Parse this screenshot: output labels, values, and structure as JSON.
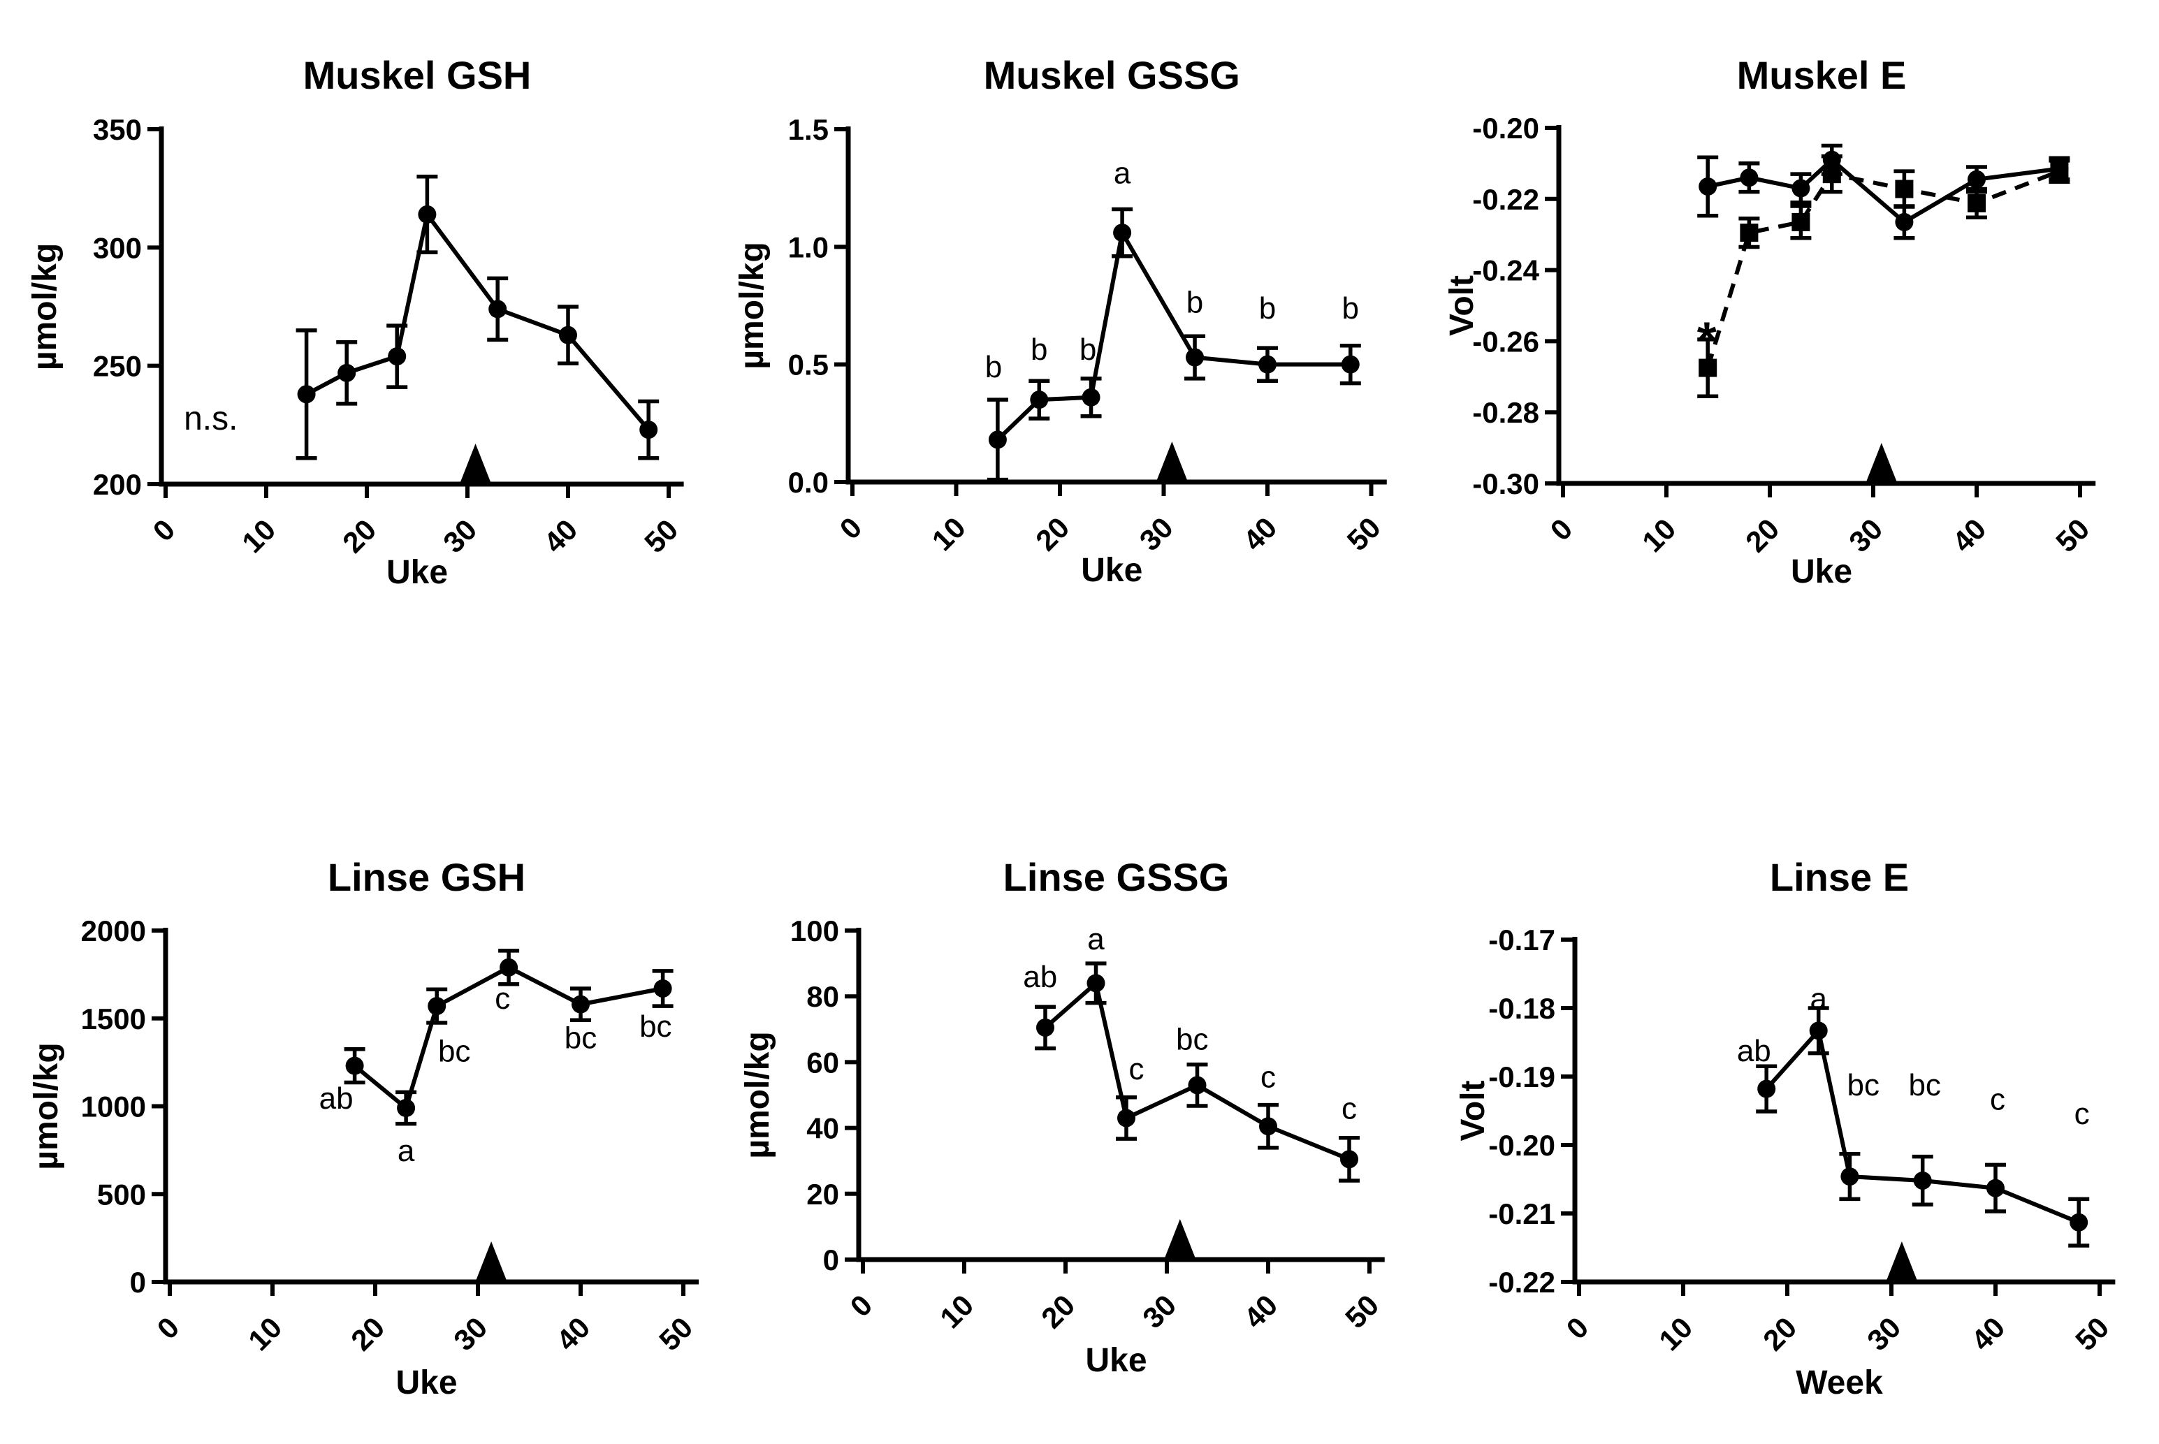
{
  "figure": {
    "background": "#ffffff",
    "ink": "#000000",
    "event_marker_glyph": "filled-up-triangle-on-x-axis"
  },
  "chart_data": [
    {
      "id": "muskel-gsh",
      "type": "line",
      "title": "Muskel GSH",
      "xlabel": "Uke",
      "ylabel": "µmol/kg",
      "xticks": [
        0,
        10,
        20,
        30,
        40,
        50
      ],
      "xlim": [
        0,
        52
      ],
      "ylim": [
        200,
        350
      ],
      "yticks": [
        {
          "v": 200,
          "label": "200"
        },
        {
          "v": 250,
          "label": "250"
        },
        {
          "v": 300,
          "label": "300"
        },
        {
          "v": 350,
          "label": "350"
        }
      ],
      "event_marker_x": 30.8,
      "series": [
        {
          "name": "muskel-gsh",
          "marker": "circle",
          "line": "solid",
          "x": [
            14,
            18,
            23,
            26,
            33,
            40,
            48
          ],
          "y": [
            238,
            247,
            254,
            314,
            274,
            263,
            223
          ],
          "err": [
            27,
            13,
            13,
            16,
            13,
            12,
            12
          ]
        }
      ],
      "annotations": [
        {
          "text": "n.s.",
          "x": 4.5,
          "y": 228,
          "dy": 17,
          "size": 48,
          "weight": "normal"
        }
      ]
    },
    {
      "id": "muskel-gssg",
      "type": "line",
      "title": "Muskel GSSG",
      "xlabel": "Uke",
      "ylabel": "µmol/kg",
      "xticks": [
        0,
        10,
        20,
        30,
        40,
        50
      ],
      "xlim": [
        0,
        52
      ],
      "ylim": [
        0,
        1.5
      ],
      "yticks": [
        {
          "v": 0,
          "label": "0.0"
        },
        {
          "v": 0.5,
          "label": "0.5"
        },
        {
          "v": 1.0,
          "label": "1.0"
        },
        {
          "v": 1.5,
          "label": "1.5"
        }
      ],
      "event_marker_x": 30.8,
      "series": [
        {
          "name": "muskel-gssg",
          "marker": "circle",
          "line": "solid",
          "x": [
            14,
            18,
            23,
            26,
            33,
            40,
            48
          ],
          "y": [
            0.18,
            0.35,
            0.36,
            1.06,
            0.53,
            0.5,
            0.5
          ],
          "err": [
            0.17,
            0.08,
            0.08,
            0.1,
            0.09,
            0.07,
            0.08
          ]
        }
      ],
      "annotations": [
        {
          "text": "b",
          "x": 13.6,
          "y": 0.49,
          "dy": 15,
          "size": 44,
          "weight": "normal"
        },
        {
          "text": "b",
          "x": 18,
          "y": 0.565,
          "dy": 15,
          "size": 44,
          "weight": "normal"
        },
        {
          "text": "b",
          "x": 22.7,
          "y": 0.565,
          "dy": 15,
          "size": 44,
          "weight": "normal"
        },
        {
          "text": "a",
          "x": 26,
          "y": 1.315,
          "dy": 15,
          "size": 44,
          "weight": "normal"
        },
        {
          "text": "b",
          "x": 33,
          "y": 0.765,
          "dy": 15,
          "size": 44,
          "weight": "normal"
        },
        {
          "text": "b",
          "x": 40,
          "y": 0.74,
          "dy": 15,
          "size": 44,
          "weight": "normal"
        },
        {
          "text": "b",
          "x": 48,
          "y": 0.74,
          "dy": 15,
          "size": 44,
          "weight": "normal"
        }
      ]
    },
    {
      "id": "muskel-e",
      "type": "line",
      "title": "Muskel E",
      "xlabel": "Uke",
      "ylabel": "Volt",
      "xticks": [
        0,
        10,
        20,
        30,
        40,
        50
      ],
      "xlim": [
        0,
        52
      ],
      "ylim": [
        -0.3,
        -0.2
      ],
      "yticks": [
        {
          "v": -0.2,
          "label": "-0.20"
        },
        {
          "v": -0.22,
          "label": "-0.22"
        },
        {
          "v": -0.24,
          "label": "-0.24"
        },
        {
          "v": -0.26,
          "label": "-0.26"
        },
        {
          "v": -0.28,
          "label": "-0.28"
        },
        {
          "v": -0.3,
          "label": "-0.30"
        }
      ],
      "event_marker_x": 30.8,
      "series": [
        {
          "name": "muskel-e-circles",
          "marker": "circle",
          "line": "solid",
          "x": [
            14,
            18,
            23,
            26,
            33,
            40,
            48
          ],
          "y": [
            -0.2165,
            -0.214,
            -0.217,
            -0.209,
            -0.2265,
            -0.2145,
            -0.2115
          ],
          "err": [
            0.0082,
            0.004,
            0.004,
            0.004,
            0.0045,
            0.0035,
            0.003
          ]
        },
        {
          "name": "muskel-e-squares",
          "marker": "square",
          "line": "dashed",
          "x": [
            14,
            18,
            23,
            26,
            33,
            40,
            48
          ],
          "y": [
            -0.2675,
            -0.2295,
            -0.2265,
            -0.213,
            -0.2172,
            -0.2212,
            -0.2122
          ],
          "err": [
            0.008,
            0.004,
            0.0045,
            0.005,
            0.005,
            0.004,
            0.003
          ]
        }
      ],
      "annotations": [
        {
          "text": "*",
          "x": 13.9,
          "y": -0.2555,
          "dy": 46,
          "size": 72,
          "weight": "bold"
        }
      ]
    },
    {
      "id": "linse-gsh",
      "type": "line",
      "title": "Linse GSH",
      "xlabel": "Uke",
      "ylabel": "µmol/kg",
      "xticks": [
        0,
        10,
        20,
        30,
        40,
        50
      ],
      "xlim": [
        0,
        52
      ],
      "ylim": [
        0,
        2000
      ],
      "yticks": [
        {
          "v": 0,
          "label": "0"
        },
        {
          "v": 500,
          "label": "500"
        },
        {
          "v": 1000,
          "label": "1000"
        },
        {
          "v": 1500,
          "label": "1500"
        },
        {
          "v": 2000,
          "label": "2000"
        }
      ],
      "event_marker_x": 31.3,
      "series": [
        {
          "name": "linse-gsh",
          "marker": "circle",
          "line": "solid",
          "x": [
            18,
            23,
            26,
            33,
            40,
            48
          ],
          "y": [
            1230,
            990,
            1570,
            1790,
            1580,
            1670
          ],
          "err": [
            95,
            90,
            95,
            95,
            90,
            100
          ]
        }
      ],
      "annotations": [
        {
          "text": "ab",
          "x": 16.2,
          "y": 1045,
          "dy": 15,
          "size": 44,
          "weight": "normal"
        },
        {
          "text": "a",
          "x": 23,
          "y": 748,
          "dy": 15,
          "size": 44,
          "weight": "normal"
        },
        {
          "text": "bc",
          "x": 27.7,
          "y": 1315,
          "dy": 15,
          "size": 44,
          "weight": "normal"
        },
        {
          "text": "c",
          "x": 32.4,
          "y": 1615,
          "dy": 15,
          "size": 44,
          "weight": "normal"
        },
        {
          "text": "bc",
          "x": 40,
          "y": 1390,
          "dy": 15,
          "size": 44,
          "weight": "normal"
        },
        {
          "text": "bc",
          "x": 47.3,
          "y": 1455,
          "dy": 15,
          "size": 44,
          "weight": "normal"
        }
      ]
    },
    {
      "id": "linse-gssg",
      "type": "line",
      "title": "Linse GSSG",
      "xlabel": "Uke",
      "ylabel": "µmol/kg",
      "xticks": [
        0,
        10,
        20,
        30,
        40,
        50
      ],
      "xlim": [
        0,
        52
      ],
      "ylim": [
        0,
        100
      ],
      "yticks": [
        {
          "v": 0,
          "label": "0"
        },
        {
          "v": 20,
          "label": "20"
        },
        {
          "v": 40,
          "label": "40"
        },
        {
          "v": 60,
          "label": "60"
        },
        {
          "v": 80,
          "label": "80"
        },
        {
          "v": 100,
          "label": "100"
        }
      ],
      "event_marker_x": 31.3,
      "series": [
        {
          "name": "linse-gssg",
          "marker": "circle",
          "line": "solid",
          "x": [
            18,
            23,
            26,
            33,
            40,
            48
          ],
          "y": [
            70.5,
            84,
            43,
            53,
            40.5,
            30.5
          ],
          "err": [
            6.3,
            6,
            6.3,
            6.3,
            6.5,
            6.5
          ]
        }
      ],
      "annotations": [
        {
          "text": "ab",
          "x": 17.5,
          "y": 86,
          "dy": 15,
          "size": 44,
          "weight": "normal"
        },
        {
          "text": "a",
          "x": 23,
          "y": 97.5,
          "dy": 15,
          "size": 44,
          "weight": "normal"
        },
        {
          "text": "c",
          "x": 27,
          "y": 58,
          "dy": 15,
          "size": 44,
          "weight": "normal"
        },
        {
          "text": "bc",
          "x": 32.5,
          "y": 67,
          "dy": 15,
          "size": 44,
          "weight": "normal"
        },
        {
          "text": "c",
          "x": 40,
          "y": 55.5,
          "dy": 15,
          "size": 44,
          "weight": "normal"
        },
        {
          "text": "c",
          "x": 48,
          "y": 46,
          "dy": 15,
          "size": 44,
          "weight": "normal"
        }
      ]
    },
    {
      "id": "linse-e",
      "type": "line",
      "title": "Linse E",
      "xlabel": "Week",
      "ylabel": "Volt",
      "xticks": [
        0,
        10,
        20,
        30,
        40,
        50
      ],
      "xlim": [
        0,
        52
      ],
      "ylim": [
        -0.22,
        -0.17
      ],
      "yticks": [
        {
          "v": -0.17,
          "label": "-0.17"
        },
        {
          "v": -0.18,
          "label": "-0.18"
        },
        {
          "v": -0.19,
          "label": "-0.19"
        },
        {
          "v": -0.2,
          "label": "-0.20"
        },
        {
          "v": -0.21,
          "label": "-0.21"
        },
        {
          "v": -0.22,
          "label": "-0.22"
        }
      ],
      "event_marker_x": 31.0,
      "series": [
        {
          "name": "linse-e",
          "marker": "circle",
          "line": "solid",
          "x": [
            18,
            23,
            26,
            33,
            40,
            48
          ],
          "y": [
            -0.1918,
            -0.1833,
            -0.2046,
            -0.2052,
            -0.2063,
            -0.2113
          ],
          "err": [
            0.0033,
            0.0033,
            0.0033,
            0.0035,
            0.0034,
            0.0034
          ]
        }
      ],
      "annotations": [
        {
          "text": "ab",
          "x": 16.8,
          "y": -0.1862,
          "dy": 15,
          "size": 44,
          "weight": "normal"
        },
        {
          "text": "a",
          "x": 23,
          "y": -0.1786,
          "dy": 15,
          "size": 44,
          "weight": "normal"
        },
        {
          "text": "bc",
          "x": 27.3,
          "y": -0.1912,
          "dy": 15,
          "size": 44,
          "weight": "normal"
        },
        {
          "text": "bc",
          "x": 33.2,
          "y": -0.1912,
          "dy": 15,
          "size": 44,
          "weight": "normal"
        },
        {
          "text": "c",
          "x": 40.2,
          "y": -0.1933,
          "dy": 15,
          "size": 44,
          "weight": "normal"
        },
        {
          "text": "c",
          "x": 48.3,
          "y": -0.1954,
          "dy": 15,
          "size": 44,
          "weight": "normal"
        }
      ]
    }
  ]
}
